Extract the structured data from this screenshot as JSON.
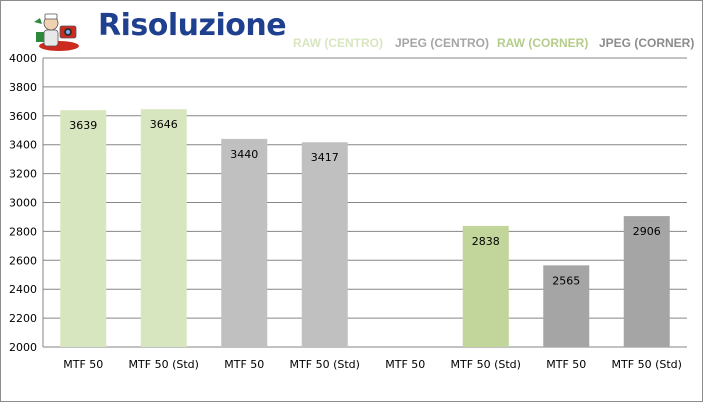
{
  "colors": {
    "raw_centro": "#d8e6c0",
    "jpeg_centro": "#c0c0c0",
    "raw_corner": "#c2d59a",
    "jpeg_corner": "#a5a5a5",
    "title": "#1f3f8f",
    "grid": "#868686"
  },
  "legend": [
    {
      "label": "RAW (CENTRO)",
      "color": "#d8e6c0"
    },
    {
      "label": "JPEG (CENTRO)",
      "color": "#a6a6a6"
    },
    {
      "label": "RAW (CORNER)",
      "color": "#b5cd8a"
    },
    {
      "label": "JPEG (CORNER)",
      "color": "#8c8c8c"
    }
  ],
  "chart_data": {
    "type": "bar",
    "title": "Risoluzione",
    "xlabel": "",
    "ylabel": "",
    "ylim": [
      2000,
      4000
    ],
    "ytick_step": 200,
    "grid": true,
    "categories": [
      "MTF 50",
      "MTF 50 (Std)",
      "MTF 50",
      "MTF 50 (Std)",
      "MTF 50",
      "MTF 50 (Std)",
      "MTF 50",
      "MTF 50 (Std)"
    ],
    "values": [
      3639,
      3646,
      3440,
      3417,
      null,
      2838,
      2565,
      2906
    ],
    "bar_colors": [
      "#d8e6c0",
      "#d8e6c0",
      "#c0c0c0",
      "#c0c0c0",
      "#c2d59a",
      "#c2d59a",
      "#a5a5a5",
      "#a5a5a5"
    ],
    "data_labels": [
      "3639",
      "3646",
      "3440",
      "3417",
      "",
      "2838",
      "2565",
      "2906"
    ]
  }
}
